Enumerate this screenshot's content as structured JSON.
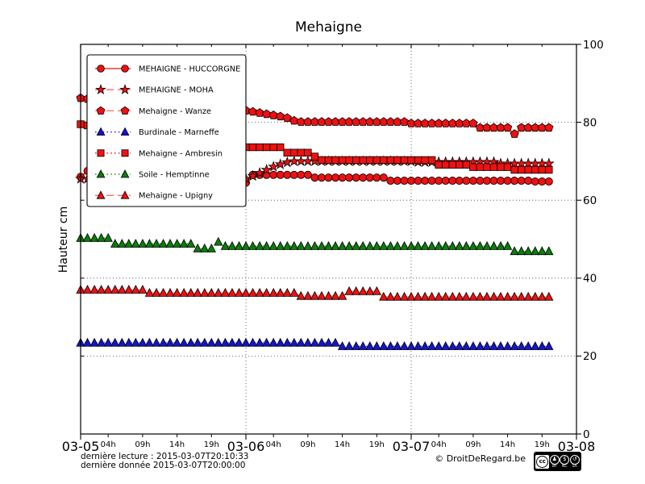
{
  "title": "Mehaigne",
  "ylabel": "Hauteur cm",
  "footer": {
    "last_read": "dernière lecture : 2015-03-07T20:10:33",
    "last_data": "dernière donnée  2015-03-07T20:00:00",
    "copyright": "© DroitDeRegard.be",
    "license": {
      "logo": "cc",
      "icons": [
        {
          "glyph": "♟",
          "label": "BY"
        },
        {
          "glyph": "$",
          "label": "NC"
        },
        {
          "glyph": "↺",
          "label": "SA"
        }
      ]
    }
  },
  "chart_data": {
    "type": "line",
    "title": "Mehaigne",
    "xlabel": "",
    "ylabel": "Hauteur cm",
    "ylim": [
      0,
      100
    ],
    "yticks": [
      0,
      20,
      40,
      60,
      80,
      100
    ],
    "grid": "dotted",
    "legend_position": "upper left",
    "x_first": "2015-03-05T00:00",
    "x_last": "2015-03-07T20:00",
    "x_interval_hours": 1,
    "x_axis_span_hours": 72,
    "x_day_labels": [
      "03-05",
      "03-06",
      "03-07",
      "03-08"
    ],
    "x_hour_labels": [
      "04h",
      "09h",
      "14h",
      "19h"
    ],
    "x_hour_offsets": [
      4,
      9,
      14,
      19
    ],
    "series": [
      {
        "name": "MEHAIGNE - HUCCORGNE",
        "marker": "circle",
        "line": "solid",
        "color": "#ee1111",
        "line_color": "#ee1111",
        "values": [
          66,
          67.5,
          68.8,
          69,
          69,
          69,
          69,
          69,
          69,
          68.5,
          68.2,
          68,
          67.8,
          67.5,
          67.3,
          67.2,
          67,
          66.9,
          66.8,
          66.7,
          66.6,
          66.6,
          66.6,
          66.6,
          64.5,
          66.5,
          66.5,
          66.5,
          66.5,
          66.5,
          66.5,
          66.5,
          66.5,
          66.5,
          65.8,
          65.8,
          65.8,
          65.8,
          65.8,
          65.8,
          65.8,
          65.8,
          65.8,
          65.8,
          65.8,
          65,
          65,
          65,
          65,
          65,
          65,
          65,
          65,
          65,
          65,
          65,
          65,
          65,
          65,
          65,
          65,
          65,
          65,
          65,
          65,
          65,
          64.8,
          64.8,
          64.8
        ]
      },
      {
        "name": "MEHAIGNE - MOHA",
        "marker": "star",
        "line": "dashed",
        "color": "#ee1111",
        "line_color": "#f96a6a",
        "values": [
          65.5,
          65.5,
          65.5,
          65.5,
          65.5,
          65.5,
          65.5,
          65.5,
          65.5,
          65.5,
          65.5,
          65.5,
          65.5,
          65.5,
          65.5,
          65.5,
          65.5,
          65.5,
          65.5,
          65.5,
          65.5,
          65.5,
          65.5,
          65.5,
          65.5,
          66.2,
          67,
          67.8,
          68.6,
          69.2,
          69.7,
          70,
          70,
          70,
          70,
          70,
          70,
          70,
          70,
          70,
          70,
          70,
          70,
          70,
          70,
          70,
          70,
          70,
          70,
          69.8,
          69.8,
          69.8,
          69.8,
          69.8,
          69.8,
          69.8,
          69.8,
          69.8,
          69.8,
          69.8,
          69.8,
          69.4,
          69.4,
          69.4,
          69.4,
          69.4,
          69.4,
          69.4,
          69.4
        ]
      },
      {
        "name": "Mehaigne - Wanze",
        "marker": "pentagon",
        "line": "dashed",
        "color": "#ee1111",
        "line_color": "#f96a6a",
        "values": [
          86.2,
          86,
          85.8,
          85.5,
          85.2,
          85,
          84.8,
          84.6,
          84.4,
          84.2,
          84.1,
          84,
          83.9,
          83.8,
          83.7,
          83.6,
          83.5,
          83.4,
          83.3,
          83.2,
          83.2,
          83.1,
          83.1,
          83,
          83,
          82.7,
          82.4,
          82.1,
          81.8,
          81.5,
          81.1,
          80.4,
          80.1,
          80.1,
          80.1,
          80.1,
          80.1,
          80.1,
          80.1,
          80.1,
          80.1,
          80.1,
          80.1,
          80.1,
          80.1,
          80.1,
          80.1,
          80.1,
          79.7,
          79.7,
          79.7,
          79.7,
          79.7,
          79.7,
          79.7,
          79.7,
          79.7,
          79.7,
          78.6,
          78.6,
          78.6,
          78.6,
          78.6,
          77,
          78.6,
          78.6,
          78.6,
          78.6,
          78.6
        ]
      },
      {
        "name": "Burdinale - Marneffe",
        "marker": "triangle",
        "line": "dotted",
        "color": "#1515cc",
        "line_color": "#1515cc",
        "values": [
          23.4,
          23.4,
          23.4,
          23.4,
          23.4,
          23.4,
          23.4,
          23.4,
          23.4,
          23.4,
          23.4,
          23.4,
          23.4,
          23.4,
          23.4,
          23.4,
          23.4,
          23.4,
          23.4,
          23.4,
          23.4,
          23.4,
          23.4,
          23.4,
          23.4,
          23.4,
          23.4,
          23.4,
          23.4,
          23.4,
          23.4,
          23.4,
          23.4,
          23.4,
          23.4,
          23.4,
          23.4,
          23.4,
          22.5,
          22.5,
          22.5,
          22.5,
          22.5,
          22.5,
          22.5,
          22.5,
          22.5,
          22.5,
          22.5,
          22.5,
          22.5,
          22.5,
          22.5,
          22.5,
          22.5,
          22.5,
          22.5,
          22.5,
          22.5,
          22.5,
          22.5,
          22.5,
          22.5,
          22.5,
          22.5,
          22.5,
          22.5,
          22.5,
          22.5
        ]
      },
      {
        "name": "Mehaigne - Ambresin",
        "marker": "square",
        "line": "dotted",
        "color": "#ee1111",
        "line_color": "#ee1111",
        "values": [
          79.5,
          79.2,
          78.9,
          78.6,
          78.3,
          78,
          77.7,
          77.5,
          77.2,
          77,
          76.7,
          76.5,
          76.2,
          76,
          75.8,
          75.5,
          75.3,
          75,
          74.8,
          74.6,
          74.4,
          74.2,
          74.1,
          74,
          73.6,
          73.6,
          73.6,
          73.6,
          73.6,
          73.6,
          72.2,
          72.2,
          72.2,
          72.2,
          71.2,
          70.3,
          70.3,
          70.3,
          70.3,
          70.3,
          70.3,
          70.3,
          70.3,
          70.3,
          70.3,
          70.3,
          70.3,
          70.3,
          70.3,
          70.3,
          70.3,
          70.3,
          69.1,
          69.1,
          69.1,
          69.1,
          69.1,
          68.5,
          68.5,
          68.5,
          68.5,
          68.5,
          68.5,
          67.8,
          67.8,
          67.8,
          67.8,
          67.8,
          67.8
        ]
      },
      {
        "name": "Soile - Hemptinne",
        "marker": "triangle",
        "line": "dotted",
        "color": "#0a7d0a",
        "line_color": "#0a7d0a",
        "values": [
          50.3,
          50.3,
          50.3,
          50.3,
          50.3,
          48.8,
          48.8,
          48.8,
          48.8,
          48.8,
          48.8,
          48.8,
          48.8,
          48.8,
          48.8,
          48.8,
          48.8,
          47.6,
          47.6,
          47.6,
          49.3,
          48.2,
          48.2,
          48.2,
          48.2,
          48.2,
          48.2,
          48.2,
          48.2,
          48.2,
          48.2,
          48.2,
          48.2,
          48.2,
          48.2,
          48.2,
          48.2,
          48.2,
          48.2,
          48.2,
          48.2,
          48.2,
          48.2,
          48.2,
          48.2,
          48.2,
          48.2,
          48.2,
          48.2,
          48.2,
          48.2,
          48.2,
          48.2,
          48.2,
          48.2,
          48.2,
          48.2,
          48.2,
          48.2,
          48.2,
          48.2,
          48.2,
          48.2,
          46.9,
          46.9,
          46.9,
          46.9,
          46.9,
          46.9
        ]
      },
      {
        "name": "Mehaigne - Upigny",
        "marker": "triangle",
        "line": "dashed",
        "color": "#ee1111",
        "line_color": "#f96a6a",
        "values": [
          37,
          37,
          37,
          37,
          37,
          37,
          37,
          37,
          37,
          37,
          36.2,
          36.2,
          36.2,
          36.2,
          36.2,
          36.2,
          36.2,
          36.2,
          36.2,
          36.2,
          36.2,
          36.2,
          36.2,
          36.2,
          36.2,
          36.2,
          36.2,
          36.2,
          36.2,
          36.2,
          36.2,
          36.2,
          35.4,
          35.4,
          35.4,
          35.4,
          35.4,
          35.4,
          35.4,
          36.6,
          36.6,
          36.6,
          36.6,
          36.6,
          35.2,
          35.2,
          35.2,
          35.2,
          35.2,
          35.2,
          35.2,
          35.2,
          35.2,
          35.2,
          35.2,
          35.2,
          35.2,
          35.2,
          35.2,
          35.2,
          35.2,
          35.2,
          35.2,
          35.2,
          35.2,
          35.2,
          35.2,
          35.2,
          35.2
        ]
      }
    ]
  }
}
